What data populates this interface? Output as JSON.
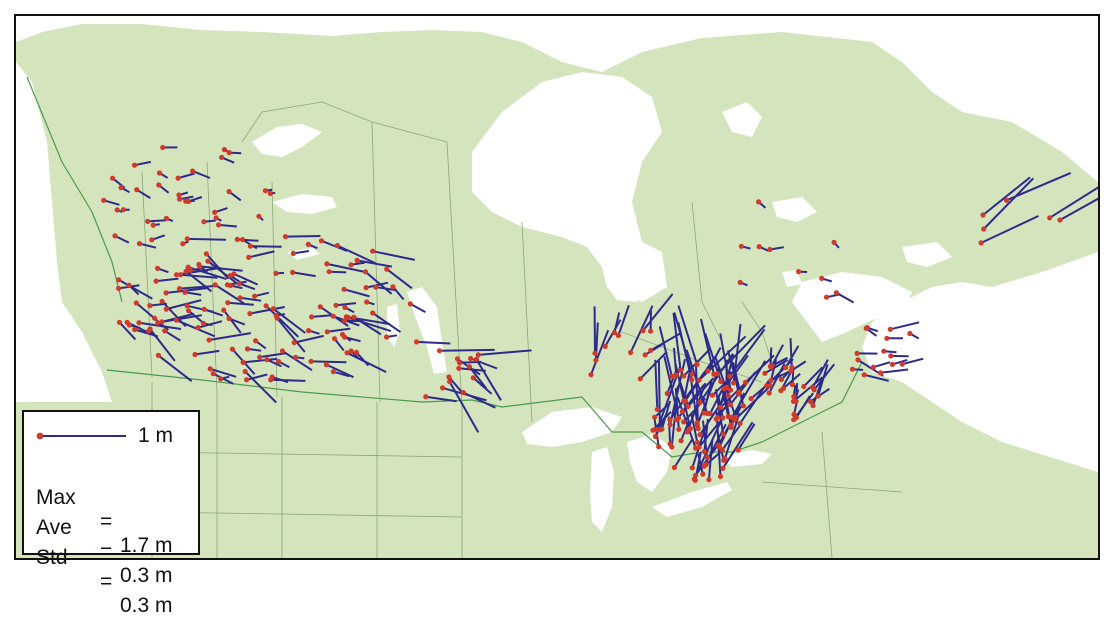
{
  "legend": {
    "scale_label": "1 m",
    "stats": [
      {
        "label": "Max",
        "eq": "=",
        "value": "1.7 m"
      },
      {
        "label": "Ave",
        "eq": "=",
        "value": "0.3 m"
      },
      {
        "label": "Std",
        "eq": "=",
        "value": "0.3 m"
      }
    ]
  },
  "colors": {
    "land": "#d4e5bd",
    "water": "#ffffff",
    "vector": "#2e2a8c",
    "station": "#d13a2a",
    "border": "#4a9a4a",
    "province": "#8aa77a"
  }
}
